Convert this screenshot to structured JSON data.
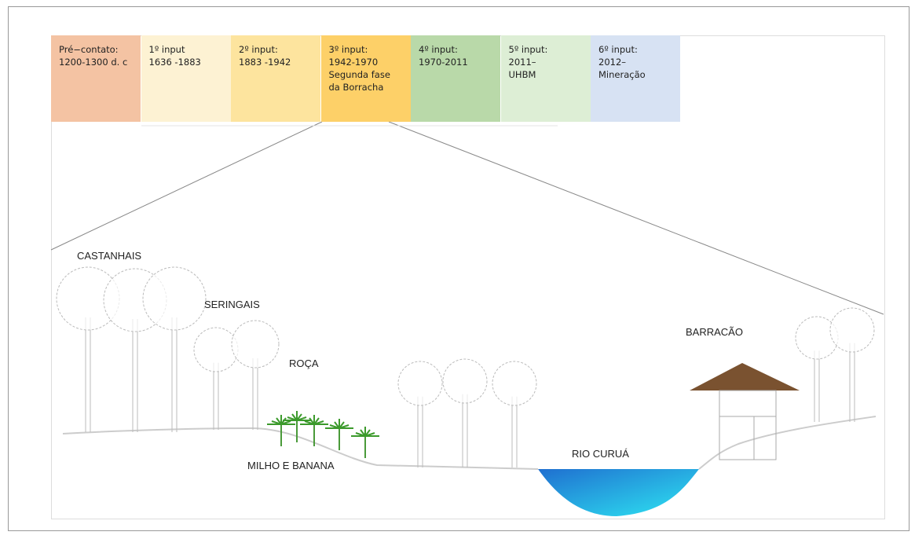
{
  "timeline": [
    {
      "lines": [
        "Pré−contato:",
        "1200-1300 d. c"
      ]
    },
    {
      "lines": [
        "1º input",
        "1636 -1883"
      ]
    },
    {
      "lines": [
        "2º input:",
        "1883 -1942"
      ]
    },
    {
      "lines": [
        "3º input:",
        "1942-1970",
        "Segunda fase",
        "da Borracha"
      ]
    },
    {
      "lines": [
        "4º input:",
        "1970-2011"
      ]
    },
    {
      "lines": [
        "5º input:",
        "2011–",
        "UHBM"
      ]
    },
    {
      "lines": [
        "6º input:",
        "2012–",
        "Mineração"
      ]
    }
  ],
  "labels": {
    "castanhais": "CASTANHAIS",
    "seringais": "SERINGAIS",
    "roca": "ROÇA",
    "milho_banana": "MILHO E BANANA",
    "rio": "RIO CURUÁ",
    "barracao": "BARRACÃO"
  }
}
